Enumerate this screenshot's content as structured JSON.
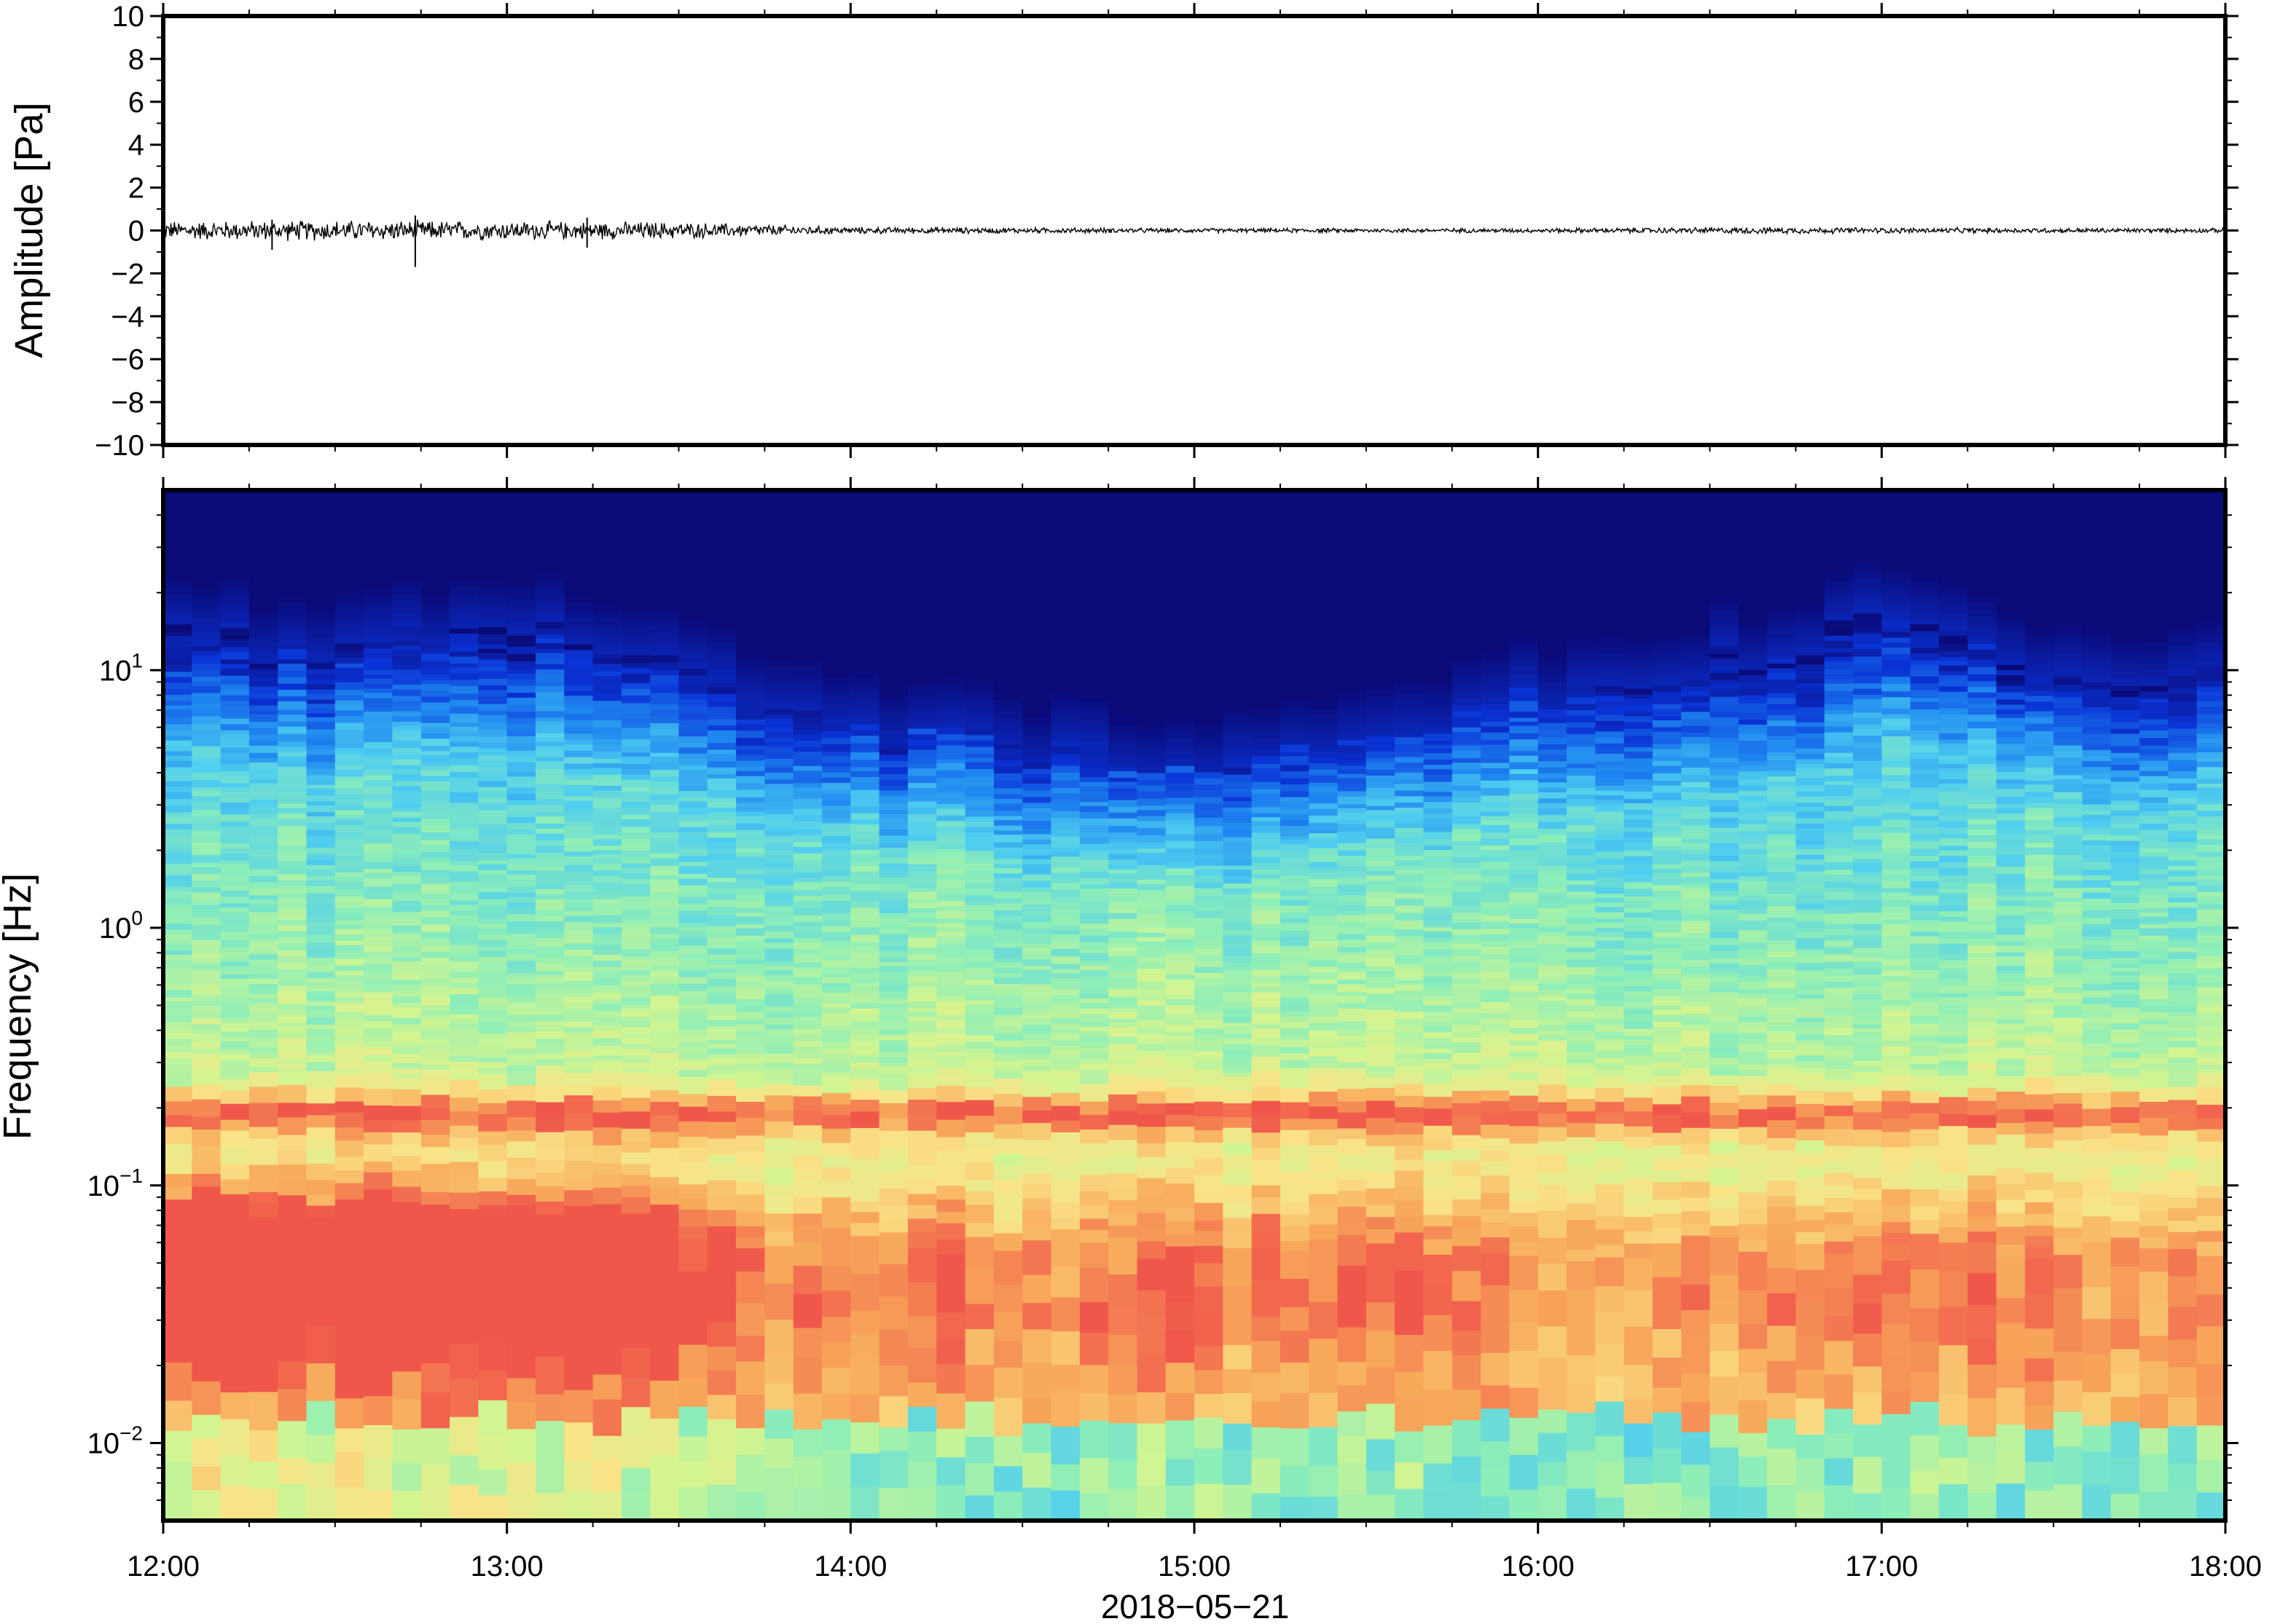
{
  "chart_data": [
    {
      "type": "line",
      "ylabel": "Amplitude [Pa]",
      "ylim": [
        -10,
        10
      ],
      "yticks": [
        "10",
        "8",
        "6",
        "4",
        "2",
        "0",
        "−2",
        "−4",
        "−6",
        "−8",
        "−10"
      ],
      "xlim": [
        "12:00",
        "18:00"
      ],
      "series": [
        {
          "color": "#000000",
          "envelope": {
            "x": [
              "12:00",
              "12:30",
              "13:00",
              "13:30",
              "14:00",
              "15:00",
              "16:00",
              "16:40",
              "17:00",
              "18:00"
            ],
            "peak": [
              0.5,
              0.55,
              0.5,
              0.45,
              0.18,
              0.12,
              0.12,
              0.18,
              0.15,
              0.12
            ]
          },
          "spikes": [
            {
              "x": "12:44",
              "min": -1.7,
              "max": 0.7
            },
            {
              "x": "12:19",
              "min": -0.9,
              "max": 0.5
            },
            {
              "x": "13:14",
              "min": -0.8,
              "max": 0.6
            }
          ]
        }
      ]
    },
    {
      "type": "heatmap",
      "ylabel": "Frequency [Hz]",
      "yscale": "log",
      "ylim": [
        0.005,
        50
      ],
      "yticks": [
        {
          "value": 10,
          "base": "10",
          "exp": "1"
        },
        {
          "value": 1,
          "base": "10",
          "exp": "0"
        },
        {
          "value": 0.1,
          "base": "10",
          "exp": "−1"
        },
        {
          "value": 0.01,
          "base": "10",
          "exp": "−2"
        }
      ],
      "xticks": [
        "12:00",
        "13:00",
        "14:00",
        "15:00",
        "16:00",
        "17:00",
        "18:00"
      ],
      "xlabel": "2018−05−21",
      "colormap": [
        "#0a0a78",
        "#0a33d6",
        "#1f87f0",
        "#4fcdf0",
        "#8ceeb9",
        "#d2f591",
        "#fae387",
        "#f8a95b",
        "#f0574b"
      ],
      "noise_upper_edge_hz": {
        "x": [
          "12:00",
          "12:30",
          "13:00",
          "13:30",
          "13:45",
          "14:30",
          "15:00",
          "15:30",
          "16:00",
          "16:20",
          "16:45",
          "17:00",
          "17:30",
          "18:00"
        ],
        "hz": [
          14,
          12,
          16,
          12,
          7,
          5,
          4,
          6,
          8,
          10,
          12,
          16,
          9,
          9
        ]
      },
      "microbarom_band_hz": 0.19,
      "low_frequency_energy": {
        "x": [
          "12:00",
          "12:30",
          "13:00",
          "13:30",
          "13:45",
          "14:30",
          "15:30",
          "16:00",
          "17:00",
          "18:00"
        ],
        "relative_level": [
          0.95,
          1.0,
          0.95,
          0.85,
          0.55,
          0.5,
          0.6,
          0.45,
          0.55,
          0.45
        ]
      }
    }
  ]
}
